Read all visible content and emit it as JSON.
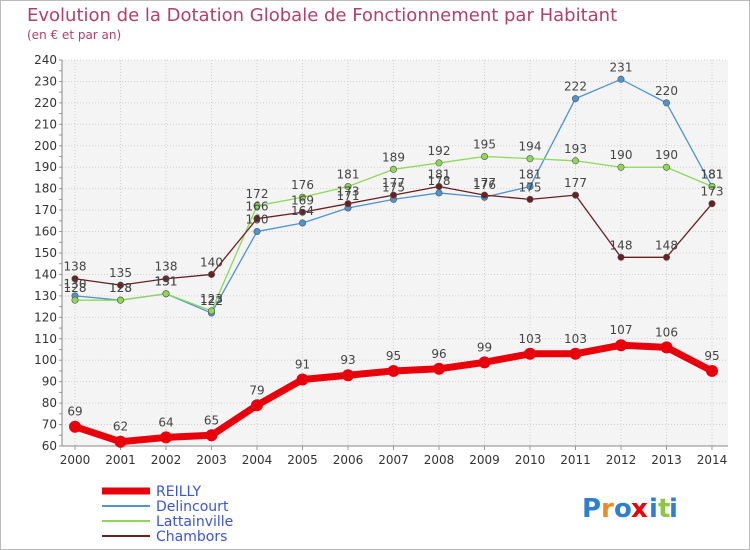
{
  "chart_data": {
    "type": "line",
    "title": "Evolution de la Dotation Globale de Fonctionnement par Habitant",
    "subtitle": "(en € et par an)",
    "x": [
      "2000",
      "2001",
      "2002",
      "2003",
      "2004",
      "2005",
      "2006",
      "2007",
      "2008",
      "2009",
      "2010",
      "2011",
      "2012",
      "2013",
      "2014"
    ],
    "y_ticks": [
      "60",
      "70",
      "80",
      "90",
      "100",
      "110",
      "120",
      "130",
      "140",
      "150",
      "160",
      "170",
      "180",
      "190",
      "200",
      "210",
      "220",
      "230",
      "240"
    ],
    "ylim": [
      60,
      240
    ],
    "grid": true,
    "legend_position": "bottom-left",
    "series": [
      {
        "name": "REILLY",
        "color": "#e8000b",
        "values": [
          69,
          62,
          64,
          65,
          79,
          91,
          93,
          95,
          96,
          99,
          103,
          103,
          107,
          106,
          95
        ],
        "labels": [
          "69",
          "62",
          "64",
          "65",
          "79",
          "91",
          "93",
          "95",
          "96",
          "99",
          "103",
          "103",
          "107",
          "106",
          "95"
        ]
      },
      {
        "name": "Delincourt",
        "color": "#4f93d0",
        "values": [
          130,
          128,
          131,
          122,
          160,
          164,
          171,
          175,
          178,
          176,
          181,
          222,
          231,
          220,
          181
        ],
        "labels": [
          "130",
          "128",
          "131",
          "122",
          "160",
          "164",
          "171",
          "175",
          "178",
          "176",
          "181",
          "222",
          "231",
          "220",
          "181"
        ]
      },
      {
        "name": "Lattainville",
        "color": "#8dd857",
        "values": [
          128,
          128,
          131,
          123,
          172,
          176,
          181,
          189,
          192,
          195,
          194,
          193,
          190,
          190,
          181
        ],
        "labels": [
          "128",
          "128",
          "131",
          "123",
          "172",
          "176",
          "181",
          "189",
          "192",
          "195",
          "194",
          "193",
          "190",
          "190",
          "181"
        ]
      },
      {
        "name": "Chambors",
        "color": "#6b1f1f",
        "values": [
          138,
          135,
          138,
          140,
          166,
          169,
          173,
          177,
          181,
          177,
          175,
          177,
          148,
          148,
          173
        ],
        "labels": [
          "138",
          "135",
          "138",
          "140",
          "166",
          "169",
          "173",
          "177",
          "181",
          "177",
          "175",
          "177",
          "148",
          "148",
          "173"
        ]
      }
    ]
  },
  "brand": {
    "letters": [
      "P",
      "r",
      "o",
      "x",
      "i",
      "t",
      "i"
    ],
    "colors": [
      "#2d7fd0",
      "#f08a20",
      "#2d7fd0",
      "#e8000b",
      "#2d7fd0",
      "#8dc63f",
      "#2d7fd0"
    ]
  }
}
